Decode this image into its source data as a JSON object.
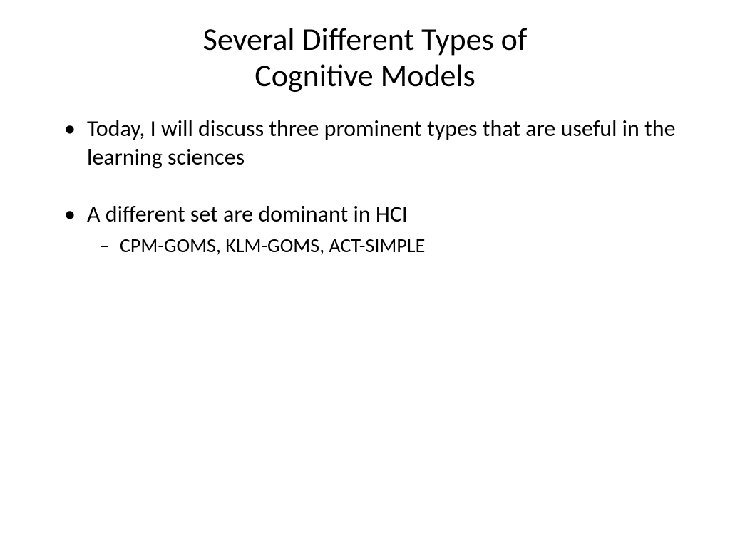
{
  "slide": {
    "title_line1": "Several Different Types of",
    "title_line2": "Cognitive Models",
    "bullets": [
      {
        "text": "Today, I will discuss three prominent types that are useful in the learning sciences",
        "sub": []
      },
      {
        "text": "A different set are dominant in HCI",
        "sub": [
          "CPM-GOMS, KLM-GOMS, ACT-SIMPLE"
        ]
      }
    ]
  },
  "styling": {
    "background_color": "#ffffff",
    "text_color": "#000000",
    "title_fontsize": 44,
    "title_fontweight": 400,
    "bullet_fontsize": 32,
    "subbullet_fontsize": 28,
    "font_family": "Calibri",
    "bullet_marker": "•",
    "subbullet_marker": "–"
  }
}
